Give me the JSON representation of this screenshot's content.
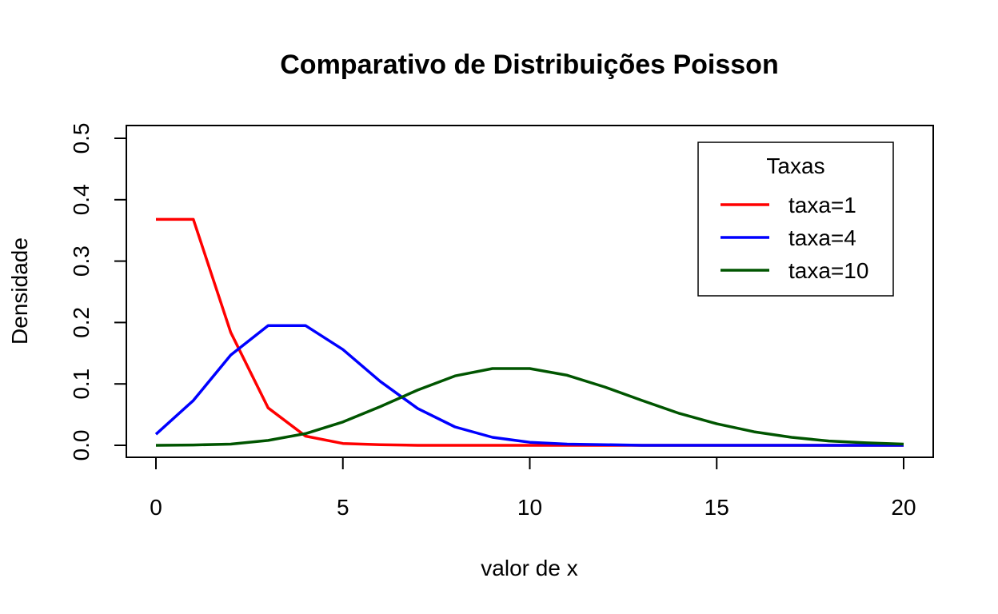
{
  "chart_data": {
    "type": "line",
    "title": "Comparativo de Distribuições Poisson",
    "xlabel": "valor de x",
    "ylabel": "Densidade",
    "xlim": [
      0,
      20
    ],
    "ylim": [
      0,
      0.5
    ],
    "x_ticks": [
      0,
      5,
      10,
      15,
      20
    ],
    "x_tick_labels": [
      "0",
      "5",
      "10",
      "15",
      "20"
    ],
    "y_ticks": [
      0,
      0.1,
      0.2,
      0.3,
      0.4,
      0.5
    ],
    "y_tick_labels": [
      "0.0",
      "0.1",
      "0.2",
      "0.3",
      "0.4",
      "0.5"
    ],
    "grid": false,
    "legend": {
      "title": "Taxas",
      "placement": "top-right"
    },
    "x": [
      0,
      1,
      2,
      3,
      4,
      5,
      6,
      7,
      8,
      9,
      10,
      11,
      12,
      13,
      14,
      15,
      16,
      17,
      18,
      19,
      20
    ],
    "series": [
      {
        "name": "taxa=1",
        "color": "#ff0000",
        "values": [
          0.368,
          0.368,
          0.184,
          0.061,
          0.015,
          0.003,
          0.001,
          0.0,
          0.0,
          0.0,
          0.0,
          0.0,
          0.0,
          0.0,
          0.0,
          0.0,
          0.0,
          0.0,
          0.0,
          0.0,
          0.0
        ]
      },
      {
        "name": "taxa=4",
        "color": "#0000ff",
        "values": [
          0.018,
          0.073,
          0.147,
          0.195,
          0.195,
          0.156,
          0.104,
          0.06,
          0.03,
          0.013,
          0.005,
          0.002,
          0.001,
          0.0,
          0.0,
          0.0,
          0.0,
          0.0,
          0.0,
          0.0,
          0.0
        ]
      },
      {
        "name": "taxa=10",
        "color": "#005500",
        "values": [
          0.0,
          0.0005,
          0.002,
          0.008,
          0.019,
          0.038,
          0.063,
          0.09,
          0.113,
          0.125,
          0.125,
          0.114,
          0.095,
          0.073,
          0.052,
          0.035,
          0.022,
          0.013,
          0.007,
          0.004,
          0.002
        ]
      }
    ]
  }
}
